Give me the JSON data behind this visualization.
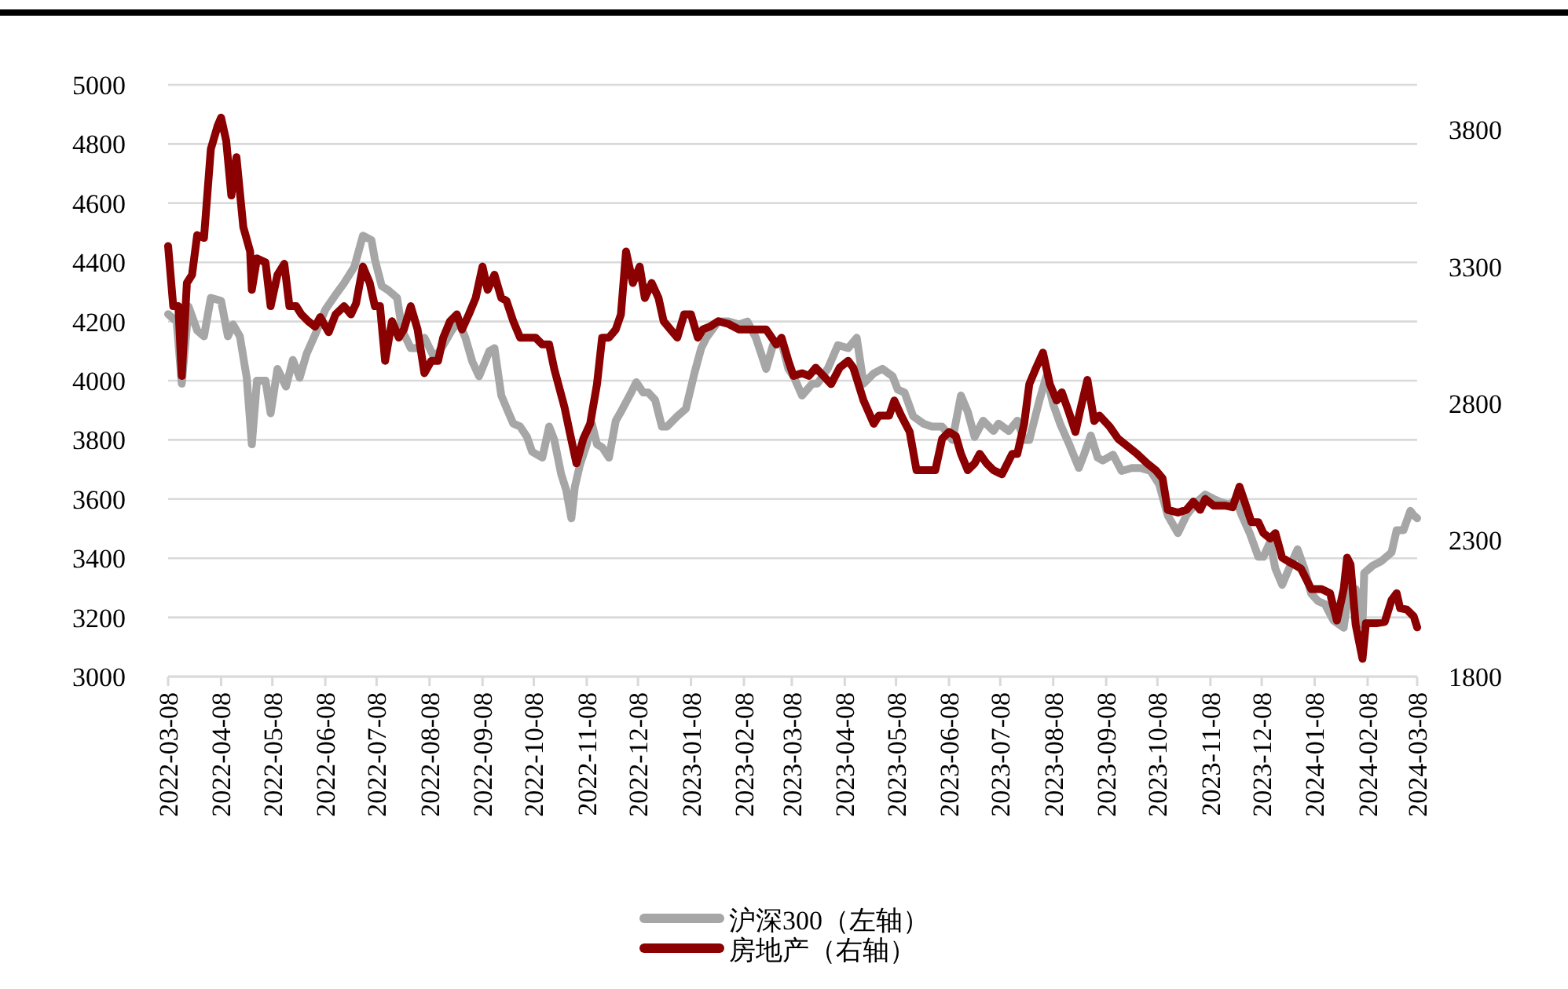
{
  "chart_data": {
    "type": "line",
    "xlim": [
      "2022-03-08",
      "2024-03-08"
    ],
    "xticks": [
      "2022-03-08",
      "2022-04-08",
      "2022-05-08",
      "2022-06-08",
      "2022-07-08",
      "2022-08-08",
      "2022-09-08",
      "2022-10-08",
      "2022-11-08",
      "2022-12-08",
      "2023-01-08",
      "2023-02-08",
      "2023-03-08",
      "2023-04-08",
      "2023-05-08",
      "2023-06-08",
      "2023-07-08",
      "2023-08-08",
      "2023-09-08",
      "2023-10-08",
      "2023-11-08",
      "2023-12-08",
      "2024-01-08",
      "2024-02-08",
      "2024-03-08"
    ],
    "ylim": [
      3000,
      5000
    ],
    "yticks": [
      3000,
      3200,
      3400,
      3600,
      3800,
      4000,
      4200,
      4400,
      4600,
      4800,
      5000
    ],
    "y2lim": [
      1800,
      3965
    ],
    "y2ticks": [
      1800,
      2300,
      2800,
      3300,
      3800
    ],
    "grid": "y",
    "legend": "bottom",
    "line_style": "solid",
    "marker": "none",
    "series": [
      {
        "name": "沪深300（左轴）",
        "color": "#a6a6a6",
        "axis": "y",
        "x": [
          "2022-03-08",
          "2022-03-13",
          "2022-03-16",
          "2022-03-20",
          "2022-03-25",
          "2022-03-29",
          "2022-04-02",
          "2022-04-08",
          "2022-04-12",
          "2022-04-15",
          "2022-04-19",
          "2022-04-23",
          "2022-04-26",
          "2022-04-29",
          "2022-05-04",
          "2022-05-07",
          "2022-05-11",
          "2022-05-16",
          "2022-05-20",
          "2022-05-24",
          "2022-05-28",
          "2022-06-02",
          "2022-06-08",
          "2022-06-14",
          "2022-06-19",
          "2022-06-25",
          "2022-06-30",
          "2022-07-05",
          "2022-07-07",
          "2022-07-11",
          "2022-07-15",
          "2022-07-20",
          "2022-07-23",
          "2022-07-28",
          "2022-08-01",
          "2022-08-05",
          "2022-08-11",
          "2022-08-16",
          "2022-08-21",
          "2022-08-25",
          "2022-08-29",
          "2022-09-02",
          "2022-09-06",
          "2022-09-12",
          "2022-09-15",
          "2022-09-19",
          "2022-09-23",
          "2022-09-26",
          "2022-09-30",
          "2022-10-04",
          "2022-10-07",
          "2022-10-13",
          "2022-10-17",
          "2022-10-20",
          "2022-10-24",
          "2022-10-27",
          "2022-10-30",
          "2022-11-01",
          "2022-11-04",
          "2022-11-08",
          "2022-11-11",
          "2022-11-14",
          "2022-11-17",
          "2022-11-21",
          "2022-11-25",
          "2022-11-28",
          "2022-12-04",
          "2022-12-07",
          "2022-12-11",
          "2022-12-14",
          "2022-12-18",
          "2022-12-22",
          "2022-12-25",
          "2022-12-31",
          "2023-01-05",
          "2023-01-10",
          "2023-01-14",
          "2023-01-17",
          "2023-01-24",
          "2023-01-30",
          "2023-02-05",
          "2023-02-10",
          "2023-02-15",
          "2023-02-21",
          "2023-02-25",
          "2023-03-02",
          "2023-03-06",
          "2023-03-09",
          "2023-03-14",
          "2023-03-20",
          "2023-03-23",
          "2023-03-29",
          "2023-04-04",
          "2023-04-10",
          "2023-04-15",
          "2023-04-19",
          "2023-04-25",
          "2023-04-30",
          "2023-05-06",
          "2023-05-09",
          "2023-05-13",
          "2023-05-18",
          "2023-05-24",
          "2023-05-29",
          "2023-06-04",
          "2023-06-10",
          "2023-06-15",
          "2023-06-19",
          "2023-06-23",
          "2023-06-28",
          "2023-07-04",
          "2023-07-07",
          "2023-07-13",
          "2023-07-18",
          "2023-07-22",
          "2023-07-25",
          "2023-07-31",
          "2023-08-04",
          "2023-08-08",
          "2023-08-12",
          "2023-08-17",
          "2023-08-23",
          "2023-08-26",
          "2023-08-30",
          "2023-09-03",
          "2023-09-06",
          "2023-09-12",
          "2023-09-17",
          "2023-09-23",
          "2023-09-28",
          "2023-10-04",
          "2023-10-09",
          "2023-10-14",
          "2023-10-20",
          "2023-10-25",
          "2023-10-31",
          "2023-11-05",
          "2023-11-10",
          "2023-11-14",
          "2023-11-19",
          "2023-11-23",
          "2023-11-26",
          "2023-12-01",
          "2023-12-06",
          "2023-12-09",
          "2023-12-13",
          "2023-12-16",
          "2023-12-20",
          "2023-12-24",
          "2023-12-29",
          "2024-01-02",
          "2024-01-06",
          "2024-01-10",
          "2024-01-14",
          "2024-01-19",
          "2024-01-25",
          "2024-01-28",
          "2024-02-01",
          "2024-02-05",
          "2024-02-06",
          "2024-02-11",
          "2024-02-16",
          "2024-02-22",
          "2024-02-25",
          "2024-02-29",
          "2024-03-04",
          "2024-03-06",
          "2024-03-08"
        ],
        "values": [
          4225,
          4200,
          3990,
          4250,
          4170,
          4150,
          4280,
          4270,
          4150,
          4190,
          4150,
          4010,
          3785,
          4000,
          4000,
          3890,
          4040,
          3980,
          4070,
          4010,
          4090,
          4155,
          4240,
          4290,
          4330,
          4385,
          4490,
          4475,
          4410,
          4320,
          4305,
          4280,
          4170,
          4110,
          4110,
          4145,
          4075,
          4120,
          4170,
          4200,
          4145,
          4065,
          4015,
          4100,
          4110,
          3950,
          3895,
          3855,
          3845,
          3810,
          3760,
          3740,
          3845,
          3800,
          3685,
          3630,
          3535,
          3640,
          3715,
          3785,
          3855,
          3785,
          3775,
          3740,
          3865,
          3895,
          3960,
          3995,
          3960,
          3960,
          3935,
          3845,
          3845,
          3880,
          3905,
          4025,
          4110,
          4145,
          4200,
          4200,
          4190,
          4200,
          4145,
          4040,
          4120,
          4130,
          4040,
          4015,
          3950,
          3990,
          3990,
          4040,
          4120,
          4110,
          4145,
          3990,
          4025,
          4040,
          4015,
          3970,
          3960,
          3880,
          3855,
          3845,
          3845,
          3800,
          3950,
          3895,
          3810,
          3865,
          3830,
          3855,
          3830,
          3865,
          3800,
          3800,
          3935,
          4015,
          3920,
          3855,
          3790,
          3705,
          3750,
          3815,
          3740,
          3730,
          3750,
          3695,
          3705,
          3705,
          3695,
          3650,
          3545,
          3485,
          3545,
          3590,
          3615,
          3600,
          3590,
          3580,
          3600,
          3550,
          3485,
          3405,
          3405,
          3455,
          3365,
          3310,
          3365,
          3430,
          3365,
          3280,
          3255,
          3245,
          3190,
          3165,
          3295,
          3295,
          3175,
          3350,
          3375,
          3390,
          3420,
          3495,
          3495,
          3560,
          3545,
          3535
        ]
      },
      {
        "name": "房地产（右轴）",
        "color": "#8b0000",
        "axis": "y2",
        "x": [
          "2022-03-08",
          "2022-03-11",
          "2022-03-14",
          "2022-03-16",
          "2022-03-19",
          "2022-03-22",
          "2022-03-25",
          "2022-03-29",
          "2022-04-02",
          "2022-04-06",
          "2022-04-08",
          "2022-04-11",
          "2022-04-14",
          "2022-04-17",
          "2022-04-21",
          "2022-04-25",
          "2022-04-26",
          "2022-04-29",
          "2022-05-04",
          "2022-05-07",
          "2022-05-11",
          "2022-05-15",
          "2022-05-18",
          "2022-05-22",
          "2022-05-25",
          "2022-05-29",
          "2022-06-02",
          "2022-06-05",
          "2022-06-10",
          "2022-06-14",
          "2022-06-19",
          "2022-06-23",
          "2022-06-26",
          "2022-06-30",
          "2022-07-04",
          "2022-07-07",
          "2022-07-10",
          "2022-07-13",
          "2022-07-17",
          "2022-07-21",
          "2022-07-24",
          "2022-07-28",
          "2022-08-01",
          "2022-08-05",
          "2022-08-09",
          "2022-08-13",
          "2022-08-16",
          "2022-08-20",
          "2022-08-24",
          "2022-08-27",
          "2022-08-31",
          "2022-09-04",
          "2022-09-08",
          "2022-09-11",
          "2022-09-15",
          "2022-09-19",
          "2022-09-22",
          "2022-09-26",
          "2022-09-30",
          "2022-10-03",
          "2022-10-09",
          "2022-10-13",
          "2022-10-17",
          "2022-10-20",
          "2022-10-26",
          "2022-10-29",
          "2022-11-02",
          "2022-11-06",
          "2022-11-10",
          "2022-11-14",
          "2022-11-17",
          "2022-11-21",
          "2022-11-25",
          "2022-11-28",
          "2022-12-01",
          "2022-12-05",
          "2022-12-09",
          "2022-12-12",
          "2022-12-16",
          "2022-12-20",
          "2022-12-23",
          "2022-12-27",
          "2022-12-31",
          "2023-01-04",
          "2023-01-08",
          "2023-01-12",
          "2023-01-15",
          "2023-01-19",
          "2023-01-24",
          "2023-01-30",
          "2023-02-05",
          "2023-02-08",
          "2023-02-14",
          "2023-02-17",
          "2023-02-21",
          "2023-02-27",
          "2023-03-02",
          "2023-03-06",
          "2023-03-09",
          "2023-03-14",
          "2023-03-18",
          "2023-03-22",
          "2023-03-25",
          "2023-03-31",
          "2023-04-05",
          "2023-04-10",
          "2023-04-13",
          "2023-04-19",
          "2023-04-25",
          "2023-04-28",
          "2023-05-04",
          "2023-05-07",
          "2023-05-11",
          "2023-05-16",
          "2023-05-20",
          "2023-05-25",
          "2023-05-31",
          "2023-06-04",
          "2023-06-08",
          "2023-06-12",
          "2023-06-15",
          "2023-06-19",
          "2023-06-23",
          "2023-06-26",
          "2023-06-30",
          "2023-07-04",
          "2023-07-09",
          "2023-07-15",
          "2023-07-18",
          "2023-07-22",
          "2023-07-25",
          "2023-07-29",
          "2023-08-02",
          "2023-08-06",
          "2023-08-10",
          "2023-08-13",
          "2023-08-17",
          "2023-08-21",
          "2023-08-24",
          "2023-08-28",
          "2023-09-01",
          "2023-09-04",
          "2023-09-10",
          "2023-09-15",
          "2023-09-21",
          "2023-09-26",
          "2023-10-02",
          "2023-10-07",
          "2023-10-11",
          "2023-10-14",
          "2023-10-20",
          "2023-10-25",
          "2023-10-29",
          "2023-11-02",
          "2023-11-05",
          "2023-11-10",
          "2023-11-14",
          "2023-11-17",
          "2023-11-21",
          "2023-11-25",
          "2023-11-28",
          "2023-12-02",
          "2023-12-06",
          "2023-12-09",
          "2023-12-13",
          "2023-12-16",
          "2023-12-20",
          "2023-12-24",
          "2023-12-27",
          "2023-12-31",
          "2024-01-06",
          "2024-01-12",
          "2024-01-17",
          "2024-01-21",
          "2024-01-25",
          "2024-01-27",
          "2024-01-29",
          "2024-02-01",
          "2024-02-05",
          "2024-02-07",
          "2024-02-13",
          "2024-02-18",
          "2024-02-22",
          "2024-02-25",
          "2024-02-27",
          "2024-03-02",
          "2024-03-06",
          "2024-03-08"
        ],
        "values": [
          3375,
          3155,
          3155,
          2900,
          3240,
          3270,
          3415,
          3405,
          3730,
          3815,
          3845,
          3760,
          3560,
          3700,
          3445,
          3355,
          3215,
          3330,
          3315,
          3155,
          3270,
          3310,
          3155,
          3155,
          3125,
          3100,
          3080,
          3115,
          3060,
          3125,
          3155,
          3125,
          3165,
          3300,
          3240,
          3155,
          3155,
          2955,
          3100,
          3040,
          3070,
          3155,
          3070,
          2910,
          2955,
          2955,
          3040,
          3100,
          3125,
          3070,
          3125,
          3185,
          3300,
          3215,
          3270,
          3185,
          3175,
          3100,
          3040,
          3040,
          3040,
          3015,
          3015,
          2925,
          2785,
          2695,
          2580,
          2670,
          2725,
          2870,
          3040,
          3040,
          3070,
          3125,
          3355,
          3240,
          3300,
          3185,
          3240,
          3185,
          3100,
          3070,
          3040,
          3125,
          3125,
          3040,
          3070,
          3080,
          3100,
          3090,
          3070,
          3070,
          3070,
          3070,
          3070,
          3015,
          3040,
          2955,
          2900,
          2910,
          2900,
          2930,
          2910,
          2870,
          2930,
          2955,
          2930,
          2810,
          2725,
          2755,
          2755,
          2810,
          2755,
          2695,
          2555,
          2555,
          2555,
          2670,
          2695,
          2680,
          2615,
          2555,
          2580,
          2615,
          2580,
          2555,
          2540,
          2615,
          2615,
          2725,
          2870,
          2930,
          2985,
          2870,
          2810,
          2840,
          2770,
          2695,
          2780,
          2885,
          2735,
          2755,
          2715,
          2670,
          2640,
          2615,
          2580,
          2555,
          2525,
          2410,
          2400,
          2410,
          2440,
          2410,
          2450,
          2425,
          2425,
          2425,
          2420,
          2495,
          2440,
          2365,
          2365,
          2325,
          2305,
          2325,
          2235,
          2220,
          2210,
          2195,
          2120,
          2120,
          2105,
          2005,
          2120,
          2235,
          2210,
          1990,
          1865,
          1995,
          1995,
          2000,
          2080,
          2105,
          2050,
          2045,
          2020,
          1980
        ]
      }
    ]
  }
}
